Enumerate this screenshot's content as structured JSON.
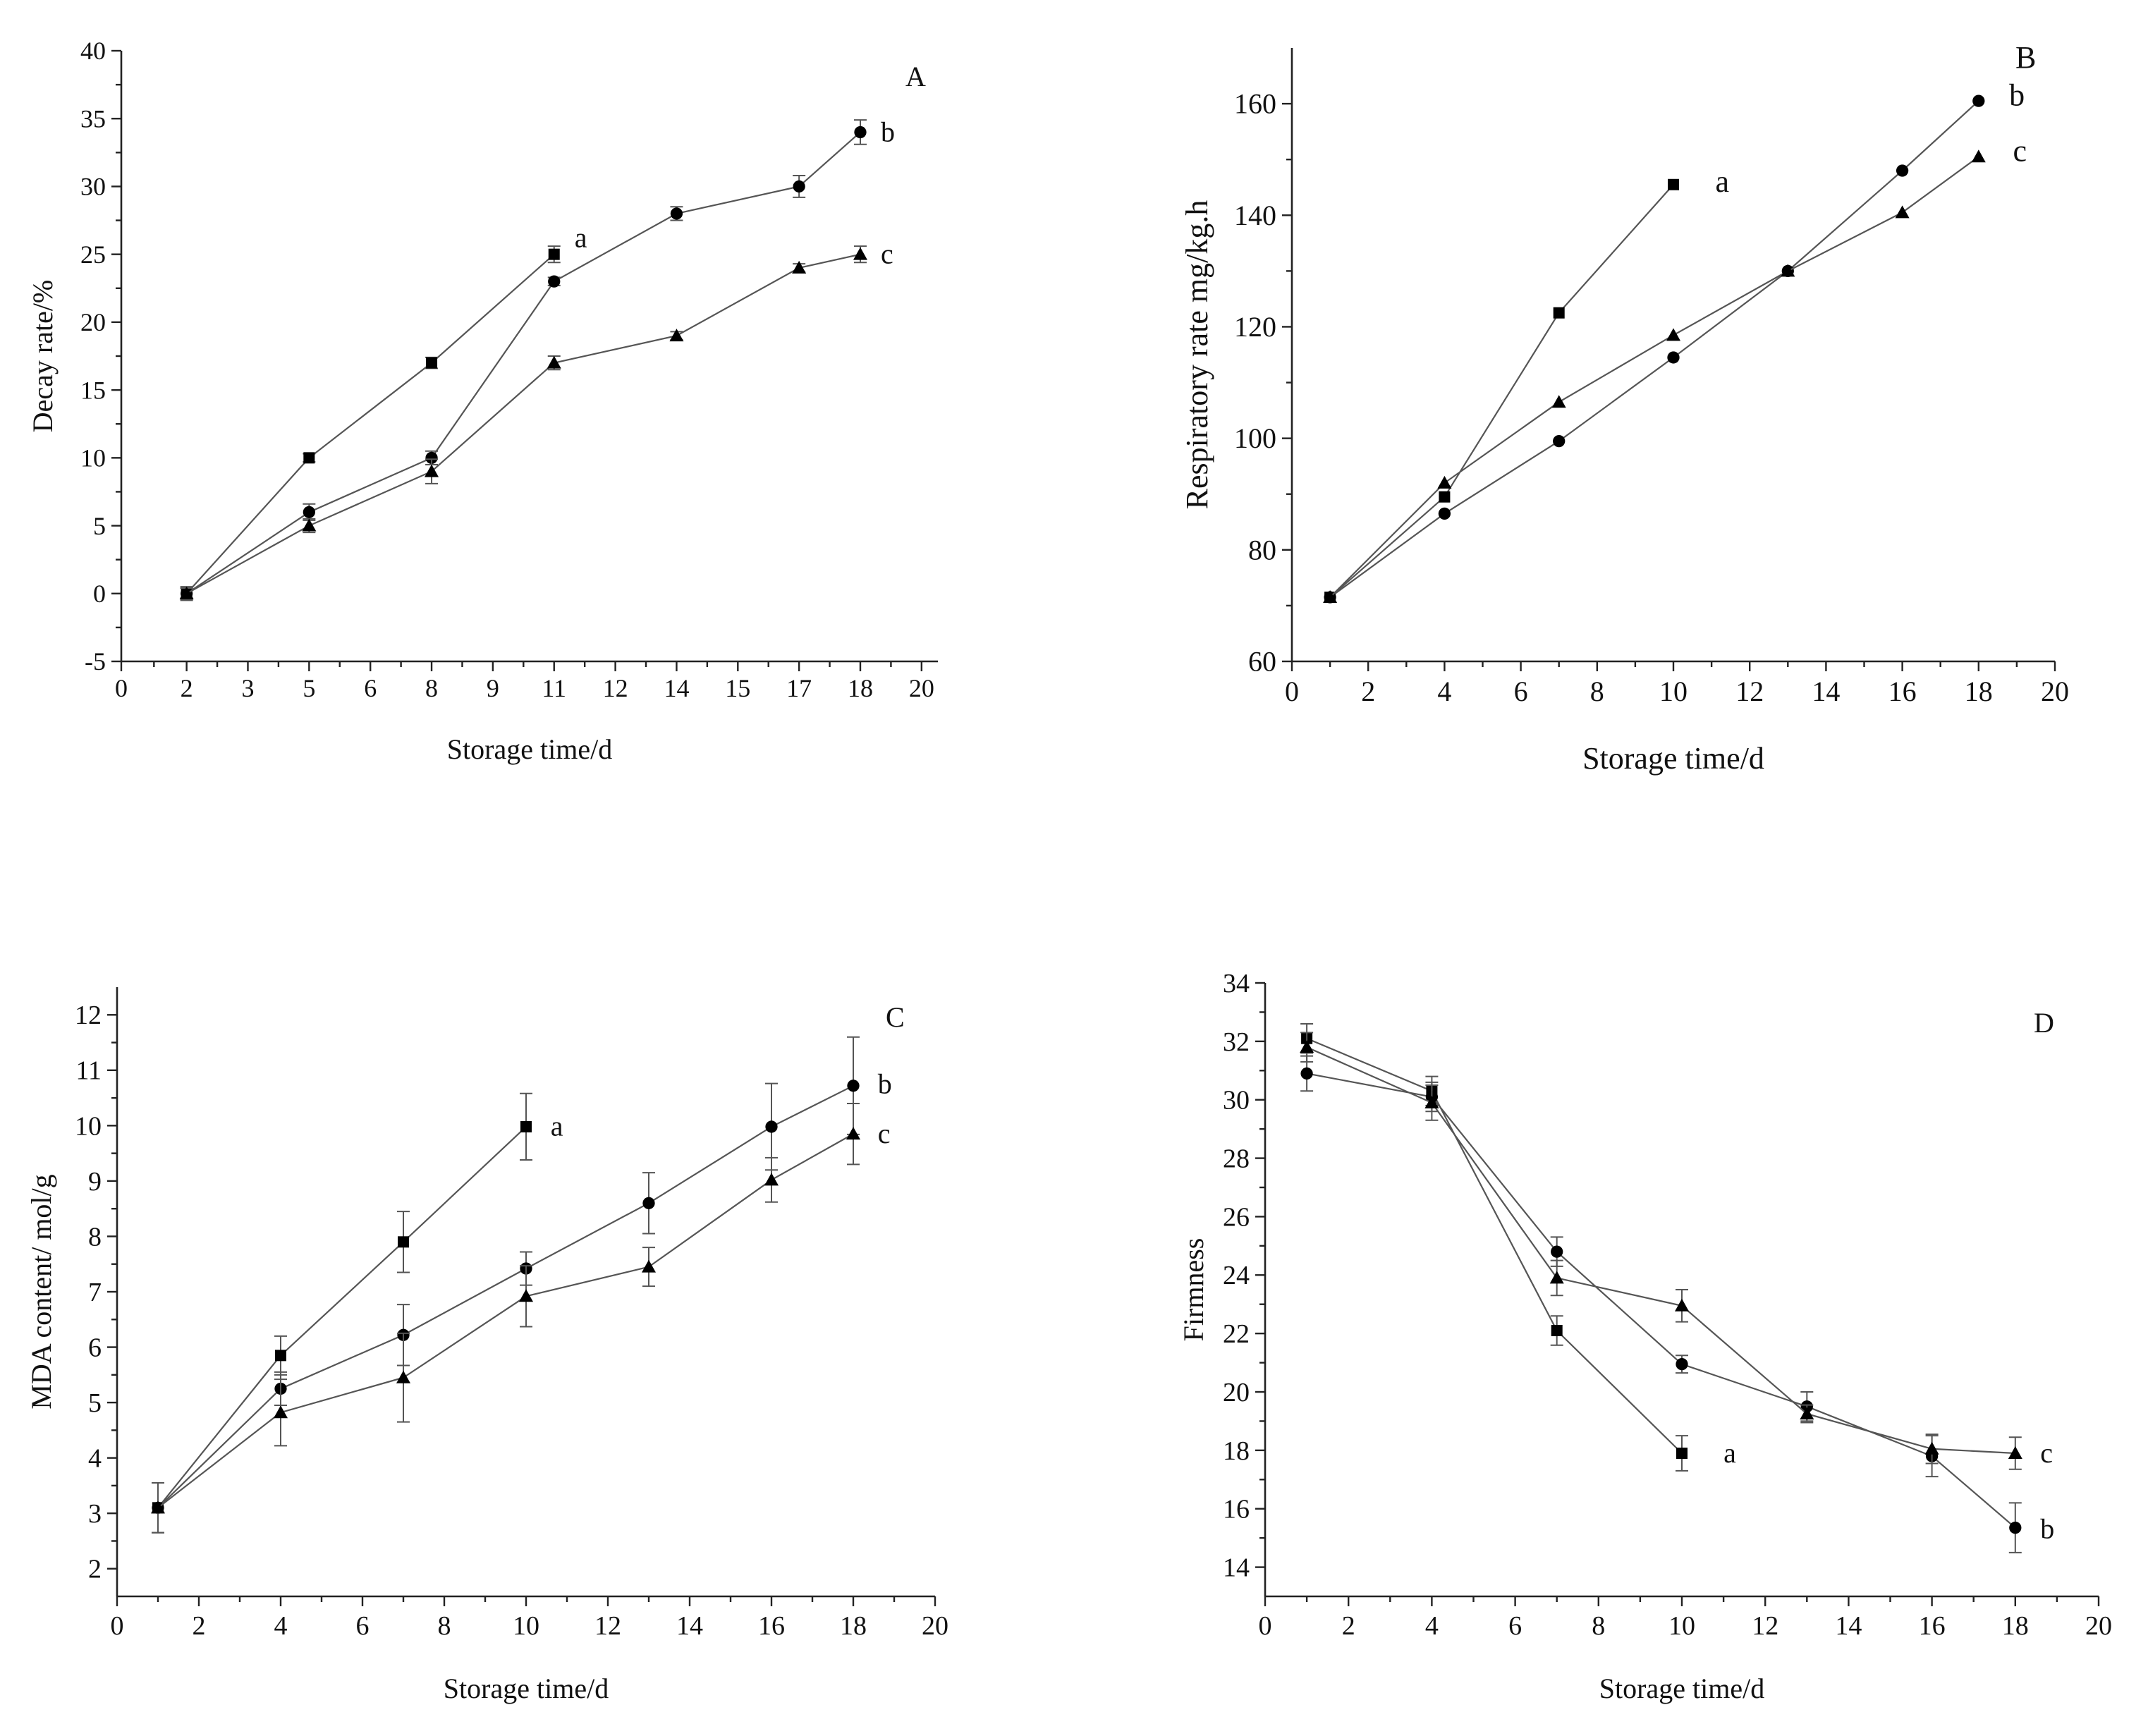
{
  "chart_data": [
    {
      "type": "line",
      "panel": "A",
      "panel_label": "A",
      "xlabel": "Storage time/d",
      "ylabel": "Decay rate/%",
      "xlim": [
        0,
        20
      ],
      "ylim": [
        -5,
        40
      ],
      "xticks": [
        {
          "v": 0,
          "label": "0"
        },
        {
          "v": 1.6,
          "label": "2"
        },
        {
          "v": 3.1,
          "label": "3"
        },
        {
          "v": 4.6,
          "label": "5"
        },
        {
          "v": 6.1,
          "label": "6"
        },
        {
          "v": 7.6,
          "label": "8"
        },
        {
          "v": 9.1,
          "label": "9"
        },
        {
          "v": 10.6,
          "label": "11"
        },
        {
          "v": 12.1,
          "label": "12"
        },
        {
          "v": 13.6,
          "label": "14"
        },
        {
          "v": 15.1,
          "label": "15"
        },
        {
          "v": 16.6,
          "label": "17"
        },
        {
          "v": 18.1,
          "label": "18"
        },
        {
          "v": 19.6,
          "label": "20"
        }
      ],
      "yticks": [
        -5,
        0,
        5,
        10,
        15,
        20,
        25,
        30,
        35,
        40
      ],
      "series": [
        {
          "name": "a",
          "marker": "square",
          "x": [
            1.6,
            4.6,
            7.6,
            10.6
          ],
          "values": [
            0,
            10,
            17,
            25
          ],
          "err": [
            0.5,
            0.3,
            0.4,
            0.6
          ]
        },
        {
          "name": "b",
          "marker": "circle",
          "x": [
            1.6,
            4.6,
            7.6,
            10.6,
            13.6,
            16.6,
            18.1
          ],
          "values": [
            0,
            6,
            10,
            23,
            28,
            30,
            34
          ],
          "err": [
            0.4,
            0.6,
            0.5,
            0.3,
            0.5,
            0.8,
            0.9
          ]
        },
        {
          "name": "c",
          "marker": "triangle",
          "x": [
            1.6,
            4.6,
            7.6,
            10.6,
            13.6,
            16.6,
            18.1
          ],
          "values": [
            0,
            5,
            9,
            17,
            19,
            24,
            25
          ],
          "err": [
            0.4,
            0.5,
            0.9,
            0.5,
            0.3,
            0.3,
            0.6
          ]
        }
      ],
      "series_labels": [
        {
          "text": "a",
          "x": 11.1,
          "y": 26.2
        },
        {
          "text": "b",
          "x": 18.6,
          "y": 34
        },
        {
          "text": "c",
          "x": 18.6,
          "y": 25
        }
      ]
    },
    {
      "type": "line",
      "panel": "B",
      "panel_label": "B",
      "xlabel": "Storage time/d",
      "ylabel": "Respiratory rate mg/kg.h",
      "xlim": [
        0,
        20
      ],
      "ylim": [
        60,
        170
      ],
      "xticks": [
        {
          "v": 0,
          "label": "0"
        },
        {
          "v": 2,
          "label": "2"
        },
        {
          "v": 4,
          "label": "4"
        },
        {
          "v": 6,
          "label": "6"
        },
        {
          "v": 8,
          "label": "8"
        },
        {
          "v": 10,
          "label": "10"
        },
        {
          "v": 12,
          "label": "12"
        },
        {
          "v": 14,
          "label": "14"
        },
        {
          "v": 16,
          "label": "16"
        },
        {
          "v": 18,
          "label": "18"
        },
        {
          "v": 20,
          "label": "20"
        }
      ],
      "yticks": [
        60,
        80,
        100,
        120,
        140,
        160
      ],
      "series": [
        {
          "name": "a",
          "marker": "square",
          "x": [
            1,
            4,
            7,
            10
          ],
          "values": [
            71.5,
            89.5,
            122.5,
            145.5
          ]
        },
        {
          "name": "b",
          "marker": "circle",
          "x": [
            1,
            4,
            7,
            10,
            13,
            16,
            18
          ],
          "values": [
            71.5,
            86.5,
            99.5,
            114.5,
            130,
            148,
            160.5
          ]
        },
        {
          "name": "c",
          "marker": "triangle",
          "x": [
            1,
            4,
            7,
            10,
            13,
            16,
            18
          ],
          "values": [
            71.5,
            92,
            106.5,
            118.5,
            130,
            140.5,
            150.5
          ]
        }
      ],
      "series_labels": [
        {
          "text": "a",
          "x": 11.1,
          "y": 146
        },
        {
          "text": "b",
          "x": 18.8,
          "y": 161.5
        },
        {
          "text": "c",
          "x": 18.9,
          "y": 151.5
        }
      ]
    },
    {
      "type": "line",
      "panel": "C",
      "panel_label": "C",
      "xlabel": "Storage time/d",
      "ylabel": "MDA content/ mol/g",
      "xlim": [
        0,
        20
      ],
      "ylim": [
        1.5,
        12.5
      ],
      "xticks": [
        {
          "v": 0,
          "label": "0"
        },
        {
          "v": 2,
          "label": "2"
        },
        {
          "v": 4,
          "label": "4"
        },
        {
          "v": 6,
          "label": "6"
        },
        {
          "v": 8,
          "label": "8"
        },
        {
          "v": 10,
          "label": "10"
        },
        {
          "v": 12,
          "label": "12"
        },
        {
          "v": 14,
          "label": "14"
        },
        {
          "v": 16,
          "label": "16"
        },
        {
          "v": 18,
          "label": "18"
        },
        {
          "v": 20,
          "label": "20"
        }
      ],
      "yticks": [
        2,
        3,
        4,
        5,
        6,
        7,
        8,
        9,
        10,
        11,
        12
      ],
      "series": [
        {
          "name": "a",
          "marker": "square",
          "x": [
            1,
            4,
            7,
            10
          ],
          "values": [
            3.1,
            5.85,
            7.9,
            9.98
          ],
          "err": [
            0.45,
            0.35,
            0.55,
            0.6
          ]
        },
        {
          "name": "b",
          "marker": "circle",
          "x": [
            1,
            4,
            7,
            10,
            13,
            16,
            18
          ],
          "values": [
            3.1,
            5.25,
            6.22,
            7.42,
            8.6,
            9.98,
            10.72
          ],
          "err": [
            0.45,
            0.3,
            0.55,
            0.3,
            0.55,
            0.78,
            0.88
          ]
        },
        {
          "name": "c",
          "marker": "triangle",
          "x": [
            1,
            4,
            7,
            10,
            13,
            16,
            18
          ],
          "values": [
            3.1,
            4.82,
            5.45,
            6.92,
            7.45,
            9.02,
            9.85
          ],
          "err": [
            0.45,
            0.6,
            0.8,
            0.55,
            0.35,
            0.4,
            0.55
          ]
        }
      ],
      "series_labels": [
        {
          "text": "a",
          "x": 10.6,
          "y": 9.98
        },
        {
          "text": "b",
          "x": 18.6,
          "y": 10.75
        },
        {
          "text": "c",
          "x": 18.6,
          "y": 9.85
        }
      ]
    },
    {
      "type": "line",
      "panel": "D",
      "panel_label": "D",
      "xlabel": "Storage time/d",
      "ylabel": "Firmness",
      "xlim": [
        0,
        20
      ],
      "ylim": [
        13,
        34
      ],
      "xticks": [
        {
          "v": 0,
          "label": "0"
        },
        {
          "v": 2,
          "label": "2"
        },
        {
          "v": 4,
          "label": "4"
        },
        {
          "v": 6,
          "label": "6"
        },
        {
          "v": 8,
          "label": "8"
        },
        {
          "v": 10,
          "label": "10"
        },
        {
          "v": 12,
          "label": "12"
        },
        {
          "v": 14,
          "label": "14"
        },
        {
          "v": 16,
          "label": "16"
        },
        {
          "v": 18,
          "label": "18"
        },
        {
          "v": 20,
          "label": "20"
        }
      ],
      "yticks": [
        14,
        16,
        18,
        20,
        22,
        24,
        26,
        28,
        30,
        32,
        34
      ],
      "series": [
        {
          "name": "a",
          "marker": "square",
          "x": [
            1,
            4,
            7,
            10
          ],
          "values": [
            32.1,
            30.3,
            22.1,
            17.9
          ],
          "err": [
            0.5,
            0.5,
            0.5,
            0.6
          ]
        },
        {
          "name": "b",
          "marker": "circle",
          "x": [
            1,
            4,
            7,
            10,
            13,
            16,
            18
          ],
          "values": [
            30.9,
            30.1,
            24.8,
            20.95,
            19.5,
            17.8,
            15.35
          ],
          "err": [
            0.6,
            0.5,
            0.5,
            0.3,
            0.5,
            0.7,
            0.85
          ]
        },
        {
          "name": "c",
          "marker": "triangle",
          "x": [
            1,
            4,
            7,
            10,
            13,
            16,
            18
          ],
          "values": [
            31.8,
            29.9,
            23.9,
            22.95,
            19.25,
            18.05,
            17.9
          ],
          "err": [
            0.5,
            0.6,
            0.6,
            0.55,
            0.3,
            0.5,
            0.55
          ]
        }
      ],
      "series_labels": [
        {
          "text": "a",
          "x": 11,
          "y": 17.9
        },
        {
          "text": "b",
          "x": 18.6,
          "y": 15.3
        },
        {
          "text": "c",
          "x": 18.6,
          "y": 17.9
        }
      ]
    }
  ]
}
